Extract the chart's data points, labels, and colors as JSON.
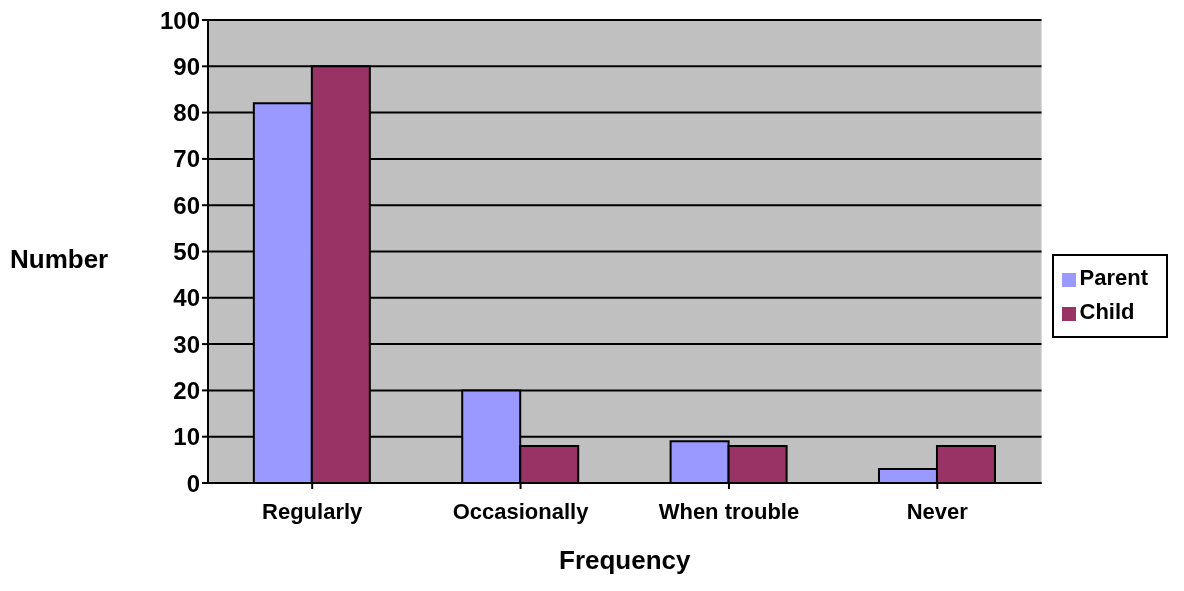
{
  "chart_data": {
    "type": "bar",
    "xlabel": "Frequency",
    "ylabel": "Number",
    "categories": [
      "Regularly",
      "Occasionally",
      "When trouble",
      "Never"
    ],
    "series": [
      {
        "name": "Parent",
        "color": "#9999ff",
        "values": [
          82,
          20,
          9,
          3
        ]
      },
      {
        "name": "Child",
        "color": "#993366",
        "values": [
          90,
          8,
          8,
          8
        ]
      }
    ],
    "ylim": [
      0,
      100
    ],
    "yticks": [
      0,
      10,
      20,
      30,
      40,
      50,
      60,
      70,
      80,
      90,
      100
    ],
    "grid": "y",
    "legend": "right"
  }
}
